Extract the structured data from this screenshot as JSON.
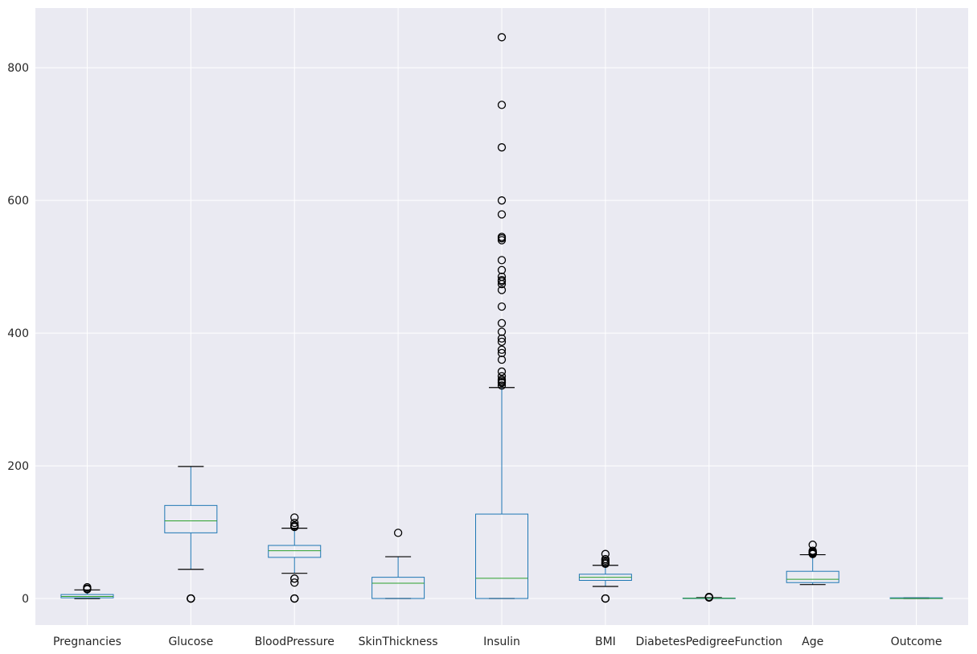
{
  "chart_data": {
    "type": "box",
    "title": "",
    "xlabel": "",
    "ylabel": "",
    "ylim": [
      -40,
      890
    ],
    "yticks": [
      0,
      200,
      400,
      600,
      800
    ],
    "grid": true,
    "colors": {
      "background": "#eaeaf2",
      "grid": "#ffffff",
      "box": "#1f77b4",
      "median": "#2ca02c",
      "whisker": "#1f77b4",
      "cap": "#000000",
      "flier": "#000000"
    },
    "categories": [
      "Pregnancies",
      "Glucose",
      "BloodPressure",
      "SkinThickness",
      "Insulin",
      "BMI",
      "DiabetesPedigreeFunction",
      "Age",
      "Outcome"
    ],
    "boxes": [
      {
        "label": "Pregnancies",
        "whislo": 0,
        "q1": 1,
        "med": 3,
        "q3": 6,
        "whishi": 13,
        "fliers": [
          14,
          15,
          17
        ]
      },
      {
        "label": "Glucose",
        "whislo": 44,
        "q1": 99,
        "med": 117,
        "q3": 140.25,
        "whishi": 199,
        "fliers": [
          0,
          0,
          0,
          0,
          0
        ]
      },
      {
        "label": "BloodPressure",
        "whislo": 38,
        "q1": 62,
        "med": 72,
        "q3": 80,
        "whishi": 106,
        "fliers": [
          0,
          0,
          0,
          24,
          30,
          30,
          108,
          108,
          110,
          110,
          114,
          122
        ]
      },
      {
        "label": "SkinThickness",
        "whislo": 0,
        "q1": 0,
        "med": 23,
        "q3": 32,
        "whishi": 63,
        "fliers": [
          99
        ]
      },
      {
        "label": "Insulin",
        "whislo": 0,
        "q1": 0,
        "med": 30.5,
        "q3": 127.25,
        "whishi": 318,
        "fliers": [
          321,
          325,
          326,
          328,
          330,
          335,
          342,
          360,
          370,
          375,
          387,
          392,
          402,
          415,
          440,
          465,
          474,
          478,
          480,
          485,
          495,
          510,
          540,
          543,
          545,
          579,
          600,
          680,
          744,
          846
        ]
      },
      {
        "label": "BMI",
        "whislo": 18.2,
        "q1": 27.3,
        "med": 32,
        "q3": 36.6,
        "whishi": 50,
        "fliers": [
          0,
          0,
          0,
          52.3,
          53.2,
          55,
          57.3,
          59.4,
          67.1
        ]
      },
      {
        "label": "DiabetesPedigreeFunction",
        "whislo": 0.078,
        "q1": 0.244,
        "med": 0.3725,
        "q3": 0.626,
        "whishi": 1.191,
        "fliers": [
          1.4,
          1.8,
          2.0,
          2.3,
          2.42
        ]
      },
      {
        "label": "Age",
        "whislo": 21,
        "q1": 24,
        "med": 29,
        "q3": 41,
        "whishi": 66,
        "fliers": [
          67,
          68,
          69,
          70,
          72,
          81
        ]
      },
      {
        "label": "Outcome",
        "whislo": 0,
        "q1": 0,
        "med": 0,
        "q3": 1,
        "whishi": 1,
        "fliers": []
      }
    ]
  }
}
